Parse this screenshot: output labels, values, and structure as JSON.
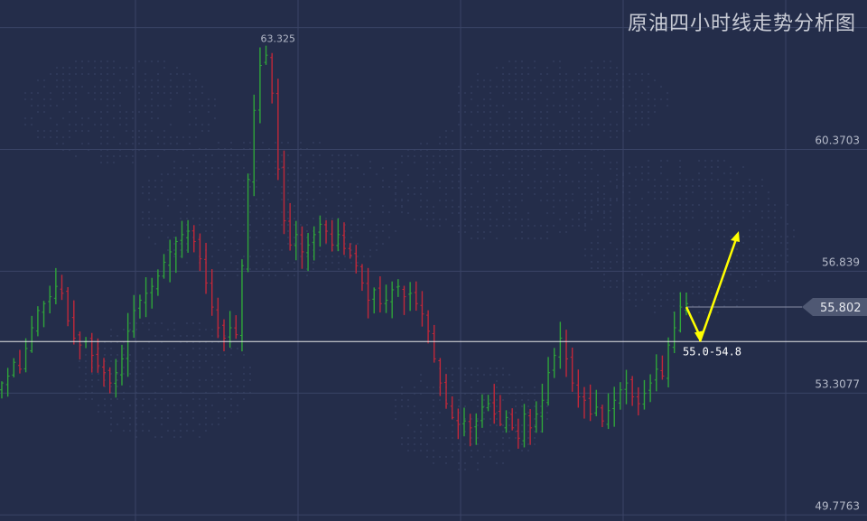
{
  "title": "原油四小时线走势分析图",
  "colors": {
    "background": "#242d4a",
    "grid": "#3a4466",
    "up": "#2fa43a",
    "down": "#c0283a",
    "arrow": "#ffff00",
    "axis_text": "#b4b9c8",
    "current_price_line": "#d8dce6"
  },
  "chart_data": {
    "type": "candlestick",
    "title": "原油四小时线走势分析图",
    "y_tick_labels": [
      "49.7763",
      "53.3077",
      "56.839",
      "60.3703"
    ],
    "y_ticks": [
      49.7763,
      53.3077,
      56.839,
      60.3703
    ],
    "ylim": [
      49.6,
      64.7
    ],
    "grid": true,
    "high_label": "63.325",
    "high_value": 63.325,
    "current_price": 55.802,
    "current_price_label": "55.802",
    "support_line": 54.8,
    "annotation": "55.0-54.8",
    "forecast": {
      "type": "arrow",
      "start_price": 55.8,
      "low_price": 54.8,
      "target_price": 58.0
    },
    "close_series": [
      53.6,
      53.8,
      54.2,
      54.0,
      54.6,
      55.2,
      55.7,
      55.9,
      56.1,
      56.4,
      56.2,
      55.4,
      54.9,
      54.7,
      54.8,
      54.4,
      54.1,
      53.9,
      53.6,
      53.9,
      54.3,
      55.1,
      55.7,
      56.0,
      56.2,
      56.4,
      56.7,
      57.1,
      57.4,
      57.7,
      57.9,
      58.0,
      57.7,
      57.2,
      56.5,
      55.8,
      55.2,
      54.9,
      55.2,
      55.0,
      57.0,
      59.5,
      61.5,
      62.8,
      63.1,
      62.0,
      59.8,
      58.3,
      57.6,
      57.9,
      57.4,
      57.6,
      57.9,
      58.2,
      58.0,
      57.6,
      57.9,
      57.5,
      57.3,
      57.0,
      56.5,
      56.0,
      56.3,
      55.9,
      56.0,
      56.3,
      56.4,
      56.1,
      56.2,
      55.9,
      55.6,
      55.1,
      54.3,
      53.6,
      53.0,
      52.6,
      52.4,
      52.5,
      52.3,
      52.5,
      52.9,
      53.0,
      52.7,
      52.4,
      52.6,
      52.3,
      52.0,
      52.7,
      52.3,
      52.7,
      53.1,
      53.9,
      54.4,
      54.9,
      54.3,
      53.6,
      53.2,
      53.1,
      52.7,
      52.9,
      52.5,
      52.8,
      53.1,
      53.4,
      53.6,
      53.2,
      53.0,
      53.3,
      53.6,
      54.0,
      53.8,
      54.7,
      55.2,
      55.8,
      55.9
    ]
  }
}
